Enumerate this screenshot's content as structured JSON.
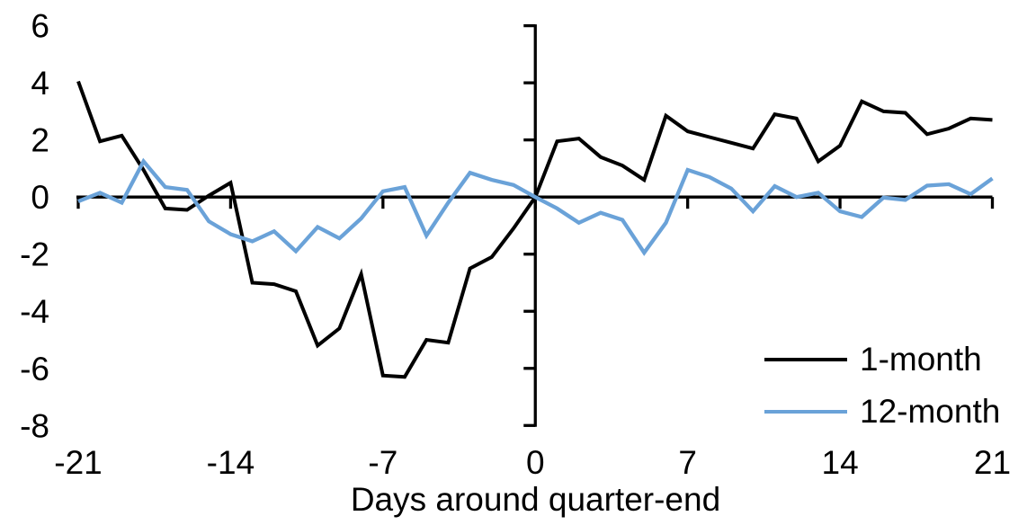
{
  "chart_data": {
    "type": "line",
    "title": "",
    "xlabel": "Days around quarter-end",
    "ylabel": "",
    "xlim": [
      -21,
      21
    ],
    "ylim": [
      -8,
      6
    ],
    "x_ticks": [
      -21,
      -14,
      -7,
      0,
      7,
      14,
      21
    ],
    "y_ticks": [
      6,
      4,
      2,
      0,
      -2,
      -4,
      -6,
      -8
    ],
    "grid": false,
    "legend_position": "lower right",
    "axis_color": "#000000",
    "x": [
      -21,
      -20,
      -19,
      -18,
      -17,
      -16,
      -15,
      -14,
      -13,
      -12,
      -11,
      -10,
      -9,
      -8,
      -7,
      -6,
      -5,
      -4,
      -3,
      -2,
      -1,
      0,
      1,
      2,
      3,
      4,
      5,
      6,
      7,
      8,
      9,
      10,
      11,
      12,
      13,
      14,
      15,
      16,
      17,
      18,
      19,
      20,
      21
    ],
    "series": [
      {
        "name": "1-month",
        "color": "#000000",
        "width": 4,
        "values": [
          4.05,
          1.95,
          2.15,
          0.95,
          -0.4,
          -0.45,
          0.05,
          0.5,
          -3.0,
          -3.05,
          -3.3,
          -5.2,
          -4.6,
          -2.7,
          -6.25,
          -6.3,
          -5.0,
          -5.1,
          -2.5,
          -2.1,
          -1.1,
          0,
          1.95,
          2.05,
          1.4,
          1.1,
          0.6,
          2.85,
          2.3,
          2.1,
          1.9,
          1.7,
          2.9,
          2.75,
          1.25,
          1.8,
          3.35,
          3.0,
          2.95,
          2.2,
          2.4,
          2.75,
          2.7
        ]
      },
      {
        "name": "12-month",
        "color": "#6aa2d8",
        "width": 4.3,
        "values": [
          -0.15,
          0.15,
          -0.2,
          1.25,
          0.35,
          0.25,
          -0.85,
          -1.3,
          -1.55,
          -1.2,
          -1.9,
          -1.05,
          -1.45,
          -0.75,
          0.2,
          0.35,
          -1.35,
          -0.2,
          0.85,
          0.6,
          0.42,
          0,
          -0.4,
          -0.9,
          -0.55,
          -0.8,
          -1.95,
          -0.9,
          0.95,
          0.7,
          0.3,
          -0.5,
          0.38,
          0.0,
          0.15,
          -0.5,
          -0.7,
          -0.02,
          -0.1,
          0.4,
          0.45,
          0.1,
          0.65
        ]
      }
    ]
  }
}
